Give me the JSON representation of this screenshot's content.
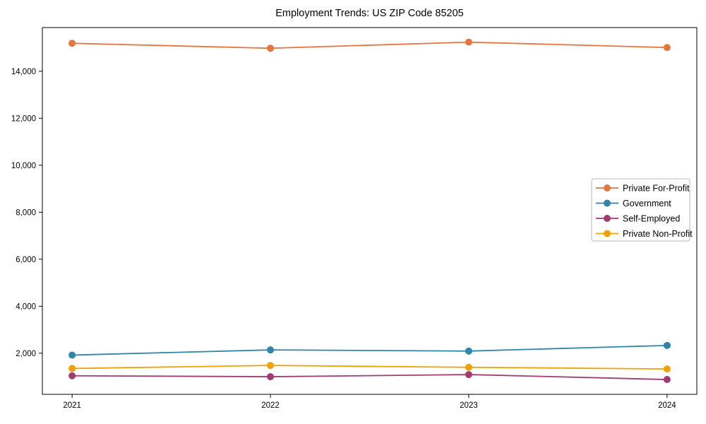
{
  "title": "Employment Trends: US ZIP Code 85205",
  "chart_data": {
    "type": "line",
    "title": "Employment Trends: US ZIP Code 85205",
    "xlabel": "",
    "ylabel": "",
    "x": [
      2021,
      2022,
      2023,
      2024
    ],
    "x_tick_labels": [
      "2021",
      "2022",
      "2023",
      "2024"
    ],
    "series": [
      {
        "name": "Private For-Profit",
        "color": "#E8743B",
        "values": [
          15190,
          14980,
          15240,
          15010
        ]
      },
      {
        "name": "Government",
        "color": "#2E86AB",
        "values": [
          1920,
          2140,
          2090,
          2330
        ]
      },
      {
        "name": "Self-Employed",
        "color": "#A23B72",
        "values": [
          1040,
          1000,
          1090,
          880
        ]
      },
      {
        "name": "Private Non-Profit",
        "color": "#F2A104",
        "values": [
          1350,
          1480,
          1400,
          1330
        ]
      }
    ],
    "yticks": [
      2000,
      4000,
      6000,
      8000,
      10000,
      12000,
      14000
    ],
    "ylim": [
      250,
      15860
    ],
    "xlim": [
      2020.85,
      2024.15
    ],
    "grid": false,
    "legend_position": "center-right",
    "marker": "circle",
    "axis_color": "#000000",
    "legend_border_color": "#b9b9b9"
  }
}
